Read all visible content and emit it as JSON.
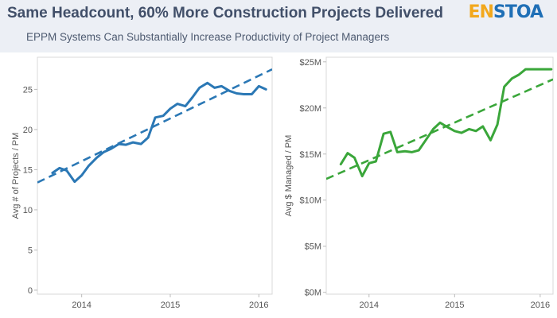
{
  "header": {
    "title": "Same Headcount, 60% More Construction Projects Delivered",
    "subtitle": "EPPM Systems Can Substantially Increase Productivity of Project Managers",
    "logo_text": "ENSTOA"
  },
  "colors": {
    "left_series": "#2b78b5",
    "right_series": "#3aa63a",
    "header_bg": "#eceff5"
  },
  "chart_data": [
    {
      "type": "line",
      "title": "",
      "xlabel": "",
      "ylabel": "Avg # of Projects / PM",
      "xlim": [
        2013.5,
        2016.15
      ],
      "ylim": [
        -0.5,
        29
      ],
      "x_ticks": [
        2014,
        2015,
        2016
      ],
      "x_tick_labels": [
        "2014",
        "2015",
        "2016"
      ],
      "y_ticks": [
        0,
        5,
        10,
        15,
        20,
        25
      ],
      "y_tick_labels": [
        "0",
        "5",
        "10",
        "15",
        "20",
        "25"
      ],
      "grid": false,
      "series": [
        {
          "name": "",
          "style": "solid",
          "x": [
            2013.67,
            2013.75,
            2013.83,
            2013.92,
            2014.0,
            2014.08,
            2014.17,
            2014.25,
            2014.33,
            2014.42,
            2014.5,
            2014.58,
            2014.67,
            2014.75,
            2014.83,
            2014.92,
            2015.0,
            2015.08,
            2015.17,
            2015.25,
            2015.33,
            2015.42,
            2015.5,
            2015.58,
            2015.67,
            2015.75,
            2015.83,
            2015.92,
            2016.0,
            2016.08
          ],
          "y": [
            14.6,
            15.2,
            14.9,
            13.5,
            14.3,
            15.5,
            16.5,
            17.2,
            17.6,
            18.2,
            18.1,
            18.4,
            18.2,
            19.0,
            21.5,
            21.7,
            22.6,
            23.2,
            22.9,
            24.0,
            25.2,
            25.8,
            25.2,
            25.4,
            24.8,
            24.5,
            24.4,
            24.4,
            25.4,
            25.0
          ]
        },
        {
          "name": "",
          "style": "dashed",
          "x": [
            2013.5,
            2016.15
          ],
          "y": [
            13.4,
            27.5
          ]
        }
      ]
    },
    {
      "type": "line",
      "title": "",
      "xlabel": "",
      "ylabel": "Avg $ Managed / PM",
      "xlim": [
        2013.5,
        2016.15
      ],
      "ylim": [
        -0.2,
        25.5
      ],
      "x_ticks": [
        2014,
        2015,
        2016
      ],
      "x_tick_labels": [
        "2014",
        "2015",
        "2016"
      ],
      "y_ticks": [
        0,
        5,
        10,
        15,
        20,
        25
      ],
      "y_tick_labels": [
        "$0M",
        "$5M",
        "$10M",
        "$15M",
        "$20M",
        "$25M"
      ],
      "grid": false,
      "series": [
        {
          "name": "",
          "style": "solid",
          "x": [
            2013.67,
            2013.75,
            2013.83,
            2013.92,
            2014.0,
            2014.08,
            2014.17,
            2014.25,
            2014.33,
            2014.42,
            2014.5,
            2014.58,
            2014.67,
            2014.75,
            2014.83,
            2014.92,
            2015.0,
            2015.08,
            2015.17,
            2015.25,
            2015.33,
            2015.42,
            2015.5,
            2015.58,
            2015.67,
            2015.75,
            2015.83,
            2015.92,
            2016.0,
            2016.08,
            2016.13
          ],
          "y": [
            13.9,
            15.1,
            14.6,
            12.6,
            14.0,
            14.2,
            17.2,
            17.4,
            15.2,
            15.3,
            15.2,
            15.4,
            16.6,
            17.7,
            18.4,
            17.9,
            17.5,
            17.3,
            17.7,
            17.5,
            18.0,
            16.5,
            18.2,
            22.3,
            23.2,
            23.6,
            24.2,
            24.2,
            24.2,
            24.2,
            24.2
          ]
        },
        {
          "name": "",
          "style": "dashed",
          "x": [
            2013.5,
            2016.15
          ],
          "y": [
            12.3,
            23.1
          ]
        }
      ]
    }
  ]
}
